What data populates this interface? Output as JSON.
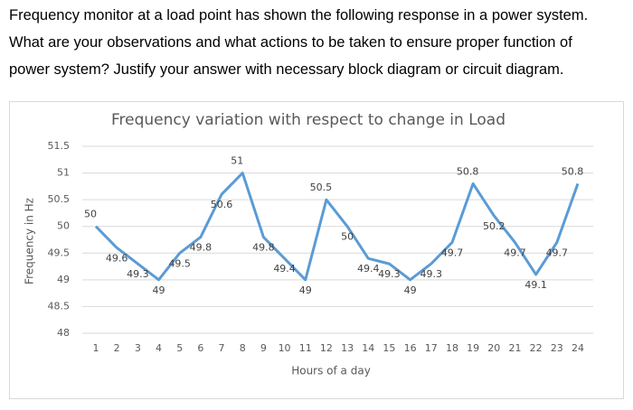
{
  "question": {
    "lines": [
      "Frequency monitor at a load point has shown the following response in a power system.",
      "What are your observations and what actions to be taken to ensure proper function of",
      "power system? Justify your answer with necessary block diagram or circuit diagram."
    ]
  },
  "chart_data": {
    "type": "line",
    "title": "Frequency variation with respect to change in Load",
    "x_label": "Hours of a day",
    "y_label": "Frequency in Hz",
    "x": [
      1,
      2,
      3,
      4,
      5,
      6,
      7,
      8,
      9,
      10,
      11,
      12,
      13,
      14,
      15,
      16,
      17,
      18,
      19,
      20,
      21,
      22,
      23,
      24
    ],
    "values": [
      50,
      49.6,
      49.3,
      49,
      49.5,
      49.8,
      50.6,
      51,
      49.8,
      49.4,
      49,
      50.5,
      50,
      49.4,
      49.3,
      49,
      49.3,
      49.7,
      50.8,
      50.2,
      49.7,
      49.1,
      49.7,
      50.8
    ],
    "color": "#5b9bd5",
    "xlim": [
      1,
      24
    ],
    "ylim": [
      48,
      51.5
    ],
    "yticks": [
      48,
      48.5,
      49,
      49.5,
      50,
      50.5,
      51,
      51.5
    ],
    "grid": true
  }
}
